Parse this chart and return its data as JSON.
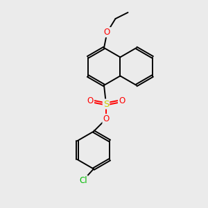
{
  "background_color": "#ebebeb",
  "bond_color": "#000000",
  "atom_colors": {
    "O": "#ff0000",
    "S": "#cccc00",
    "Cl": "#00bb00",
    "C": "#000000"
  },
  "figsize": [
    3.0,
    3.0
  ],
  "dpi": 100,
  "xlim": [
    0,
    10
  ],
  "ylim": [
    0,
    10
  ]
}
